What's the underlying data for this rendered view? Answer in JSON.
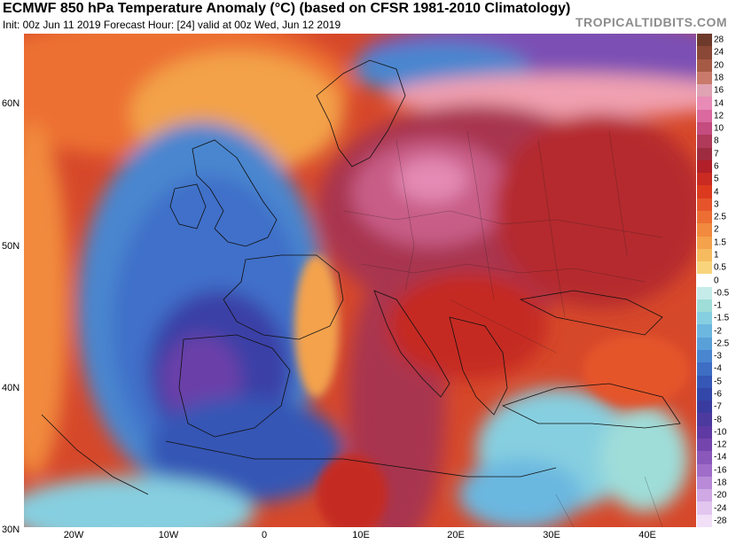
{
  "header": {
    "title": "ECMWF 850 hPa Temperature Anomaly (°C) (based on CFSR 1981-2010 Climatology)",
    "subtitle": "Init: 00z Jun 11 2019   Forecast Hour: [24]   valid at 00z Wed, Jun 12 2019",
    "brand": "TROPICALTIDBITS.COM"
  },
  "axes": {
    "lat_labels": [
      "60N",
      "50N",
      "40N",
      "30N"
    ],
    "lon_labels": [
      "20W",
      "10W",
      "0",
      "10E",
      "20E",
      "30E",
      "40E"
    ]
  },
  "colorbar": {
    "levels": [
      "28",
      "24",
      "20",
      "18",
      "16",
      "14",
      "12",
      "10",
      "8",
      "7",
      "6",
      "5",
      "4",
      "3",
      "2.5",
      "2",
      "1.5",
      "1",
      "0.5",
      "0",
      "-0.5",
      "-1",
      "-1.5",
      "-2",
      "-2.5",
      "-3",
      "-4",
      "-5",
      "-6",
      "-7",
      "-8",
      "-10",
      "-12",
      "-14",
      "-16",
      "-18",
      "-20",
      "-24",
      "-28"
    ],
    "colors": [
      "#6e3a2c",
      "#8a4836",
      "#a55a45",
      "#c97a6b",
      "#e0a3b3",
      "#e88bb6",
      "#d9699f",
      "#c44c7e",
      "#b03a5a",
      "#9e2c40",
      "#b11f28",
      "#c92a22",
      "#dc3a1e",
      "#e5542a",
      "#ec6e33",
      "#f18a3e",
      "#f4a24c",
      "#f6bb5f",
      "#f8d57c",
      "#ffffff",
      "#c6ecea",
      "#9fddd9",
      "#86cfe0",
      "#6bb7e0",
      "#5aa0d8",
      "#4a86cf",
      "#3e6dc4",
      "#3657b5",
      "#3247a8",
      "#3a3b9e",
      "#4c3a9e",
      "#5f3aa2",
      "#7445ad",
      "#8a58ba",
      "#a06ec8",
      "#b88ad7",
      "#cfa8e4",
      "#e2c6ef",
      "#f1e0f8"
    ]
  },
  "colors": {
    "warm_core": "#a8344f",
    "warm_peak": "#e48ab4",
    "hot_red": "#c52a22",
    "cool_blue": "#3f70c9",
    "deep_blue": "#3a3fa6",
    "purple": "#6a3fa8"
  }
}
